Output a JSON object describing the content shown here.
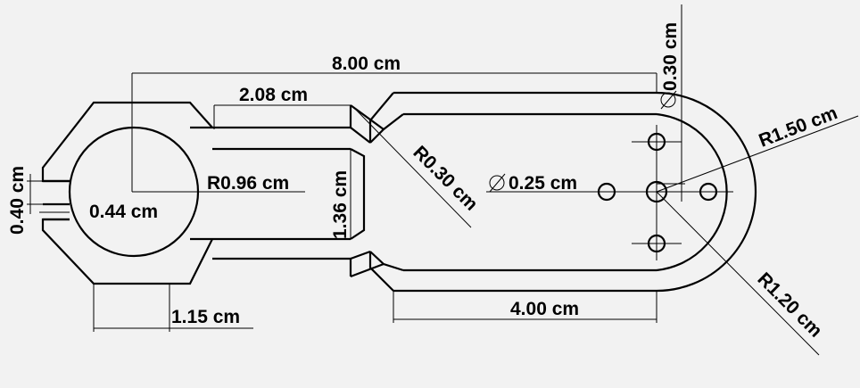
{
  "drawing": {
    "background": "#f2f2f2",
    "line_color": "#000000",
    "dimensions": {
      "overall_length": "8.00 cm",
      "top_slot": "2.08 cm",
      "bore_radius": "R0.96 cm",
      "gap_height": "0.40 cm",
      "gap_length": "0.44 cm",
      "foot_width": "1.15 cm",
      "neck_height": "1.36 cm",
      "fillet_radius": "R0.30 cm",
      "hole_diameter_small": "0.25 cm",
      "hole_diameter_top": "0.30 cm",
      "outer_radius": "R1.50 cm",
      "inner_radius": "R1.20 cm",
      "slot_length": "4.00 cm"
    }
  }
}
